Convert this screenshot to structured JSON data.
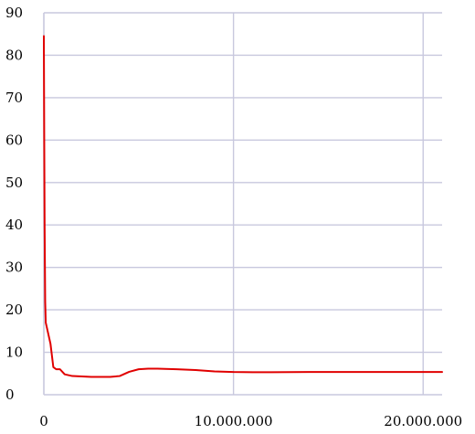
{
  "chart_data": {
    "type": "line",
    "title": "",
    "xlabel": "",
    "ylabel": "",
    "xlim": [
      0,
      21000000
    ],
    "ylim": [
      0,
      90
    ],
    "grid": true,
    "x_ticks": [
      {
        "value": 0,
        "label": "0"
      },
      {
        "value": 10000000,
        "label": "10.000.000"
      },
      {
        "value": 20000000,
        "label": "20.000.000"
      }
    ],
    "y_ticks": [
      {
        "value": 0,
        "label": "0"
      },
      {
        "value": 10,
        "label": "10"
      },
      {
        "value": 20,
        "label": "20"
      },
      {
        "value": 30,
        "label": "30"
      },
      {
        "value": 40,
        "label": "40"
      },
      {
        "value": 50,
        "label": "50"
      },
      {
        "value": 60,
        "label": "60"
      },
      {
        "value": 70,
        "label": "70"
      },
      {
        "value": 80,
        "label": "80"
      },
      {
        "value": 90,
        "label": "90"
      }
    ],
    "series": [
      {
        "color": "#e00000",
        "points": [
          [
            0,
            84.5
          ],
          [
            20000,
            60
          ],
          [
            40000,
            40
          ],
          [
            70000,
            22
          ],
          [
            100000,
            17
          ],
          [
            200000,
            15
          ],
          [
            350000,
            12
          ],
          [
            500000,
            6.5
          ],
          [
            650000,
            6.0
          ],
          [
            850000,
            6.0
          ],
          [
            1100000,
            4.8
          ],
          [
            1500000,
            4.4
          ],
          [
            2500000,
            4.2
          ],
          [
            3500000,
            4.2
          ],
          [
            4000000,
            4.4
          ],
          [
            4500000,
            5.4
          ],
          [
            5000000,
            6.0
          ],
          [
            5500000,
            6.15
          ],
          [
            6000000,
            6.15
          ],
          [
            7000000,
            6.0
          ],
          [
            8000000,
            5.8
          ],
          [
            9000000,
            5.5
          ],
          [
            10000000,
            5.35
          ],
          [
            11000000,
            5.3
          ],
          [
            12000000,
            5.3
          ],
          [
            14000000,
            5.35
          ],
          [
            16000000,
            5.35
          ],
          [
            18000000,
            5.35
          ],
          [
            20000000,
            5.35
          ],
          [
            21000000,
            5.35
          ]
        ]
      }
    ]
  }
}
